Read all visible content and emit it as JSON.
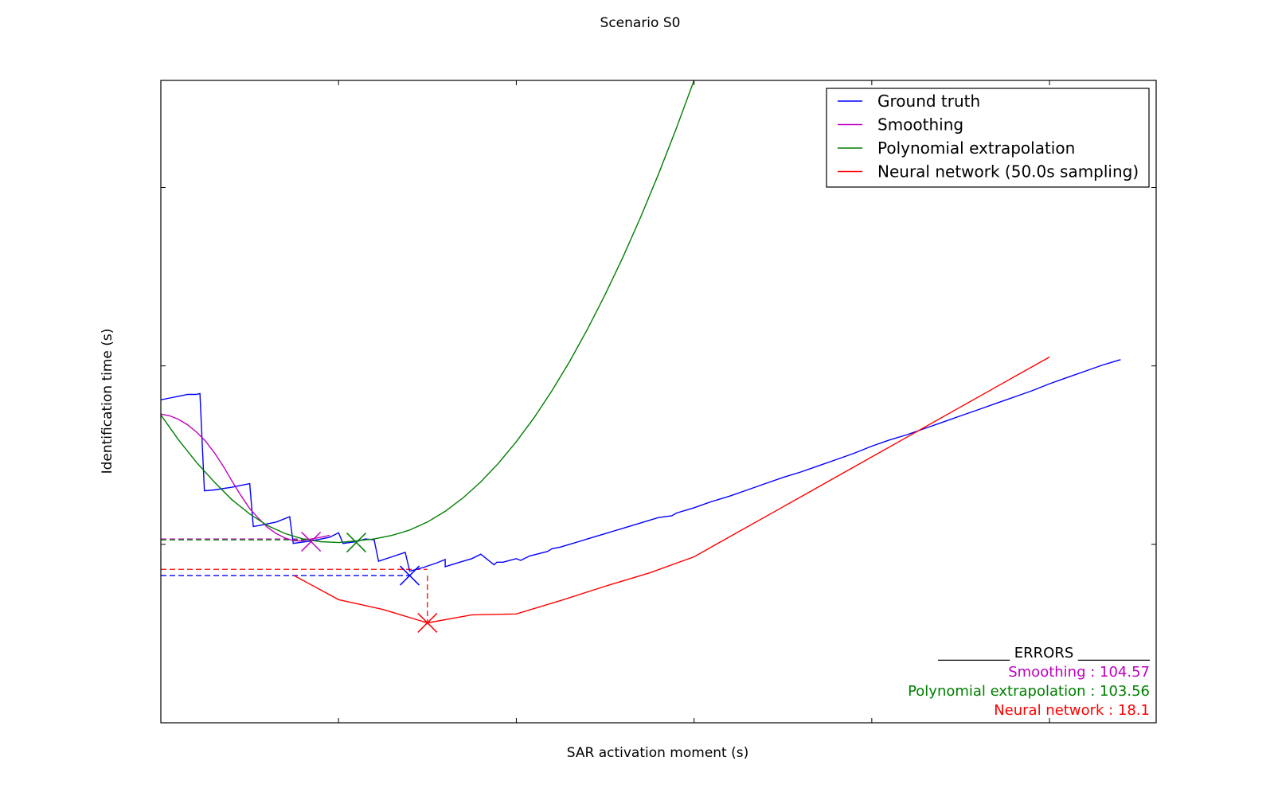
{
  "chart_data": {
    "type": "line",
    "title": "Scenario S0",
    "xlabel": "SAR activation moment (s)",
    "ylabel": "Identification time (s)",
    "xlim": [
      0,
      1120
    ],
    "ylim": [
      0,
      720
    ],
    "x_ticks": [
      0,
      200,
      400,
      600,
      800,
      1000
    ],
    "y_ticks": [
      200,
      400,
      600
    ],
    "tick_labels_shown": false,
    "grid": false,
    "legend_position": "upper right",
    "series": [
      {
        "name": "Ground truth",
        "color": "#0000ff",
        "x": [
          0,
          10,
          20,
          25,
          30,
          40,
          44,
          49,
          60,
          80,
          100,
          104,
          110,
          130,
          145,
          149,
          170,
          190,
          200,
          205,
          220,
          230,
          240,
          245,
          260,
          275,
          280,
          295,
          310,
          320,
          320,
          340,
          350,
          360,
          375,
          378,
          385,
          400,
          405,
          415,
          435,
          440,
          450,
          460,
          470,
          480,
          490,
          500,
          510,
          520,
          530,
          540,
          550,
          560,
          575,
          580,
          600,
          620,
          640,
          660,
          680,
          700,
          720,
          740,
          760,
          780,
          800,
          820,
          840,
          860,
          880,
          900,
          920,
          940,
          960,
          980,
          1000,
          1020,
          1040,
          1060,
          1080
        ],
        "y": [
          362,
          364,
          366,
          367,
          368,
          368,
          369,
          260,
          261,
          264,
          268,
          220,
          221,
          225,
          231,
          201,
          204,
          208,
          213,
          201,
          203,
          206,
          205,
          181,
          186,
          191,
          170,
          174,
          179,
          183,
          175,
          181,
          184,
          189,
          177,
          180,
          180,
          184,
          182,
          187,
          192,
          195,
          197,
          200,
          203,
          206,
          209,
          212,
          215,
          218,
          221,
          224,
          227,
          230,
          232,
          235,
          241,
          248,
          254,
          261,
          268,
          275,
          281,
          288,
          295,
          302,
          310,
          317,
          323,
          330,
          337,
          344,
          351,
          358,
          365,
          372,
          380,
          387,
          394,
          401,
          407
        ]
      },
      {
        "name": "Smoothing",
        "color": "#bf00bf",
        "x": [
          0,
          10,
          20,
          30,
          40,
          50,
          60,
          70,
          80,
          90,
          100,
          110,
          120,
          130,
          140,
          150,
          160,
          170,
          180,
          190
        ],
        "y": [
          346,
          344,
          340,
          334,
          326,
          316,
          303,
          288,
          271,
          255,
          240,
          229,
          219,
          212,
          207,
          204,
          204,
          206,
          208,
          210
        ]
      },
      {
        "name": "Polynomial extrapolation",
        "color": "#007f00",
        "x": [
          0,
          20,
          40,
          60,
          80,
          100,
          120,
          140,
          160,
          180,
          200,
          220,
          240,
          260,
          280,
          300,
          320,
          340,
          360,
          380,
          400,
          420,
          440,
          460,
          480,
          500,
          520,
          540,
          560,
          580,
          600,
          620,
          640
        ],
        "y": [
          345,
          317,
          292,
          270,
          250,
          234,
          221,
          212,
          206,
          203,
          202,
          204,
          206,
          210,
          216,
          225,
          237,
          252,
          270,
          291,
          315,
          342,
          372,
          405,
          441,
          480,
          522,
          567,
          615,
          666,
          720,
          777,
          837
        ]
      },
      {
        "name": "Neural network (50.0s sampling)",
        "color": "#ff0000",
        "x": [
          150,
          200,
          250,
          300,
          350,
          400,
          450,
          500,
          550,
          600,
          650,
          700,
          750,
          800,
          850,
          900,
          950,
          1000
        ],
        "y": [
          165,
          138,
          127,
          112,
          121,
          122,
          137,
          153,
          168,
          186,
          214,
          242,
          270,
          298,
          326,
          354,
          382,
          410
        ]
      }
    ],
    "markers": [
      {
        "series": "Smoothing",
        "x": 169,
        "y": 203,
        "color": "#bf00bf"
      },
      {
        "series": "Polynomial extrapolation",
        "x": 220,
        "y": 202,
        "color": "#007f00"
      },
      {
        "series": "Ground truth",
        "x": 280,
        "y": 165,
        "color": "#0000ff"
      },
      {
        "series": "Neural network (50.0s sampling)",
        "x": 300,
        "y": 112,
        "color": "#ff0000"
      }
    ],
    "reference_lines": [
      {
        "color": "#bf00bf",
        "y": 206,
        "x_end": 169,
        "style": "dashed"
      },
      {
        "color": "#007f00",
        "y": 205,
        "x_end": 169,
        "style": "dashed"
      },
      {
        "color": "#ff0000",
        "y": 172,
        "x_end": 300,
        "style": "dashed"
      },
      {
        "color": "#0000ff",
        "y": 165,
        "x_end": 280,
        "style": "dashed"
      }
    ],
    "error_vertical": {
      "x": 300,
      "y_from": 165,
      "y_to": 112,
      "color": "#ff0000",
      "style": "dashed"
    },
    "errors_box": {
      "header": "__________ ERRORS __________",
      "rows": [
        {
          "text": "Smoothing : 104.57",
          "color": "#bf00bf"
        },
        {
          "text": "Polynomial extrapolation : 103.56",
          "color": "#007f00"
        },
        {
          "text": "Neural network : 18.1",
          "color": "#ff0000"
        }
      ]
    }
  }
}
